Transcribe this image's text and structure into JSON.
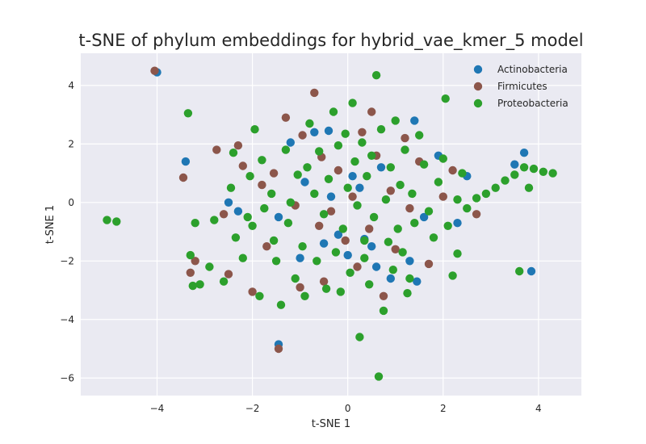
{
  "chart_data": {
    "type": "scatter",
    "title": "t-SNE of phylum embeddings for hybrid_vae_kmer_5 model",
    "xlabel": "t-SNE 1",
    "ylabel": "t-SNE 1",
    "xlim": [
      -5.6,
      4.9
    ],
    "ylim": [
      -6.6,
      5.1
    ],
    "xticks": [
      -4,
      -2,
      0,
      2,
      4
    ],
    "yticks": [
      -6,
      -4,
      -2,
      0,
      2,
      4
    ],
    "xtick_labels": [
      "−4",
      "−2",
      "0",
      "2",
      "4"
    ],
    "ytick_labels": [
      "−6",
      "−4",
      "−2",
      "0",
      "2",
      "4"
    ],
    "grid": true,
    "legend_position": "top-right",
    "series": [
      {
        "name": "Actinobacteria",
        "color": "#1f77b4",
        "points": [
          [
            -4.0,
            4.45
          ],
          [
            -3.4,
            1.4
          ],
          [
            -2.5,
            0.0
          ],
          [
            -2.3,
            -0.3
          ],
          [
            -1.45,
            -0.5
          ],
          [
            -1.45,
            -4.85
          ],
          [
            -1.2,
            2.05
          ],
          [
            -1.0,
            -1.9
          ],
          [
            -0.7,
            2.4
          ],
          [
            -0.4,
            2.45
          ],
          [
            -0.5,
            -1.4
          ],
          [
            -0.2,
            -1.1
          ],
          [
            0.0,
            -1.8
          ],
          [
            0.1,
            0.9
          ],
          [
            0.25,
            0.5
          ],
          [
            0.35,
            -1.25
          ],
          [
            0.5,
            -1.5
          ],
          [
            0.6,
            -2.2
          ],
          [
            0.9,
            -2.6
          ],
          [
            1.3,
            -2.0
          ],
          [
            1.4,
            2.8
          ],
          [
            1.45,
            -2.7
          ],
          [
            1.6,
            -0.5
          ],
          [
            1.9,
            1.6
          ],
          [
            2.3,
            -0.7
          ],
          [
            2.5,
            0.9
          ],
          [
            3.5,
            1.3
          ],
          [
            3.7,
            1.7
          ],
          [
            3.85,
            -2.35
          ],
          [
            -0.35,
            0.2
          ],
          [
            0.7,
            1.2
          ],
          [
            -0.9,
            0.7
          ]
        ]
      },
      {
        "name": "Firmicutes",
        "color": "#8c564b",
        "points": [
          [
            -4.05,
            4.5
          ],
          [
            -3.45,
            0.85
          ],
          [
            -3.2,
            -2.0
          ],
          [
            -2.75,
            1.8
          ],
          [
            -2.6,
            -0.4
          ],
          [
            -2.5,
            -2.45
          ],
          [
            -2.3,
            1.95
          ],
          [
            -2.2,
            1.25
          ],
          [
            -2.0,
            -3.05
          ],
          [
            -1.8,
            0.6
          ],
          [
            -1.7,
            -1.5
          ],
          [
            -1.45,
            -5.0
          ],
          [
            -1.3,
            2.9
          ],
          [
            -1.1,
            -0.1
          ],
          [
            -1.0,
            -2.9
          ],
          [
            -0.7,
            3.75
          ],
          [
            -0.6,
            -0.8
          ],
          [
            -0.55,
            1.55
          ],
          [
            -0.5,
            -2.7
          ],
          [
            -0.35,
            -0.3
          ],
          [
            -0.2,
            1.1
          ],
          [
            -0.05,
            -1.3
          ],
          [
            0.1,
            0.2
          ],
          [
            0.2,
            -2.2
          ],
          [
            0.3,
            2.4
          ],
          [
            0.45,
            -0.9
          ],
          [
            0.6,
            1.6
          ],
          [
            0.75,
            -3.2
          ],
          [
            0.9,
            0.4
          ],
          [
            1.0,
            -1.6
          ],
          [
            1.2,
            2.2
          ],
          [
            1.3,
            -0.2
          ],
          [
            1.5,
            1.4
          ],
          [
            1.7,
            -2.1
          ],
          [
            2.0,
            0.2
          ],
          [
            2.2,
            1.1
          ],
          [
            2.7,
            -0.4
          ],
          [
            -3.3,
            -2.4
          ],
          [
            -0.95,
            2.3
          ],
          [
            0.5,
            3.1
          ],
          [
            -1.55,
            1.0
          ]
        ]
      },
      {
        "name": "Proteobacteria",
        "color": "#2ca02c",
        "points": [
          [
            -5.05,
            -0.6
          ],
          [
            -4.85,
            -0.65
          ],
          [
            -3.35,
            3.05
          ],
          [
            -3.3,
            -1.8
          ],
          [
            -3.1,
            -2.8
          ],
          [
            -3.2,
            -0.7
          ],
          [
            -2.9,
            -2.2
          ],
          [
            -2.8,
            -0.6
          ],
          [
            -2.6,
            -2.7
          ],
          [
            -2.45,
            0.5
          ],
          [
            -2.35,
            -1.2
          ],
          [
            -2.2,
            -1.9
          ],
          [
            -2.1,
            -0.5
          ],
          [
            -2.05,
            0.9
          ],
          [
            -1.95,
            2.5
          ],
          [
            -1.8,
            1.45
          ],
          [
            -1.75,
            -0.2
          ],
          [
            -1.6,
            0.3
          ],
          [
            -1.55,
            -1.3
          ],
          [
            -1.5,
            -2.0
          ],
          [
            -1.4,
            -3.5
          ],
          [
            -1.3,
            1.8
          ],
          [
            -1.25,
            -0.7
          ],
          [
            -1.1,
            -2.6
          ],
          [
            -1.05,
            0.95
          ],
          [
            -0.95,
            -1.5
          ],
          [
            -0.9,
            -3.2
          ],
          [
            -0.85,
            1.2
          ],
          [
            -0.8,
            2.7
          ],
          [
            -0.7,
            0.3
          ],
          [
            -0.65,
            -2.0
          ],
          [
            -0.6,
            1.75
          ],
          [
            -0.5,
            -0.4
          ],
          [
            -0.45,
            -2.95
          ],
          [
            -0.4,
            0.8
          ],
          [
            -0.3,
            3.1
          ],
          [
            -0.25,
            -1.7
          ],
          [
            -0.2,
            1.95
          ],
          [
            -0.1,
            -0.9
          ],
          [
            -0.05,
            2.35
          ],
          [
            0.0,
            0.5
          ],
          [
            0.05,
            -2.4
          ],
          [
            0.1,
            3.4
          ],
          [
            0.15,
            1.4
          ],
          [
            0.2,
            -0.1
          ],
          [
            0.25,
            -4.6
          ],
          [
            0.3,
            2.05
          ],
          [
            0.35,
            -1.9
          ],
          [
            0.4,
            0.9
          ],
          [
            0.45,
            -2.8
          ],
          [
            0.5,
            1.6
          ],
          [
            0.55,
            -0.5
          ],
          [
            0.6,
            4.35
          ],
          [
            0.65,
            -5.95
          ],
          [
            0.7,
            2.5
          ],
          [
            0.75,
            -3.7
          ],
          [
            0.8,
            0.1
          ],
          [
            0.85,
            -1.35
          ],
          [
            0.9,
            1.2
          ],
          [
            0.95,
            -2.3
          ],
          [
            1.0,
            2.8
          ],
          [
            1.05,
            -0.9
          ],
          [
            1.1,
            0.6
          ],
          [
            1.15,
            -1.7
          ],
          [
            1.2,
            1.8
          ],
          [
            1.3,
            -2.6
          ],
          [
            1.35,
            0.3
          ],
          [
            1.4,
            -0.7
          ],
          [
            1.5,
            2.3
          ],
          [
            1.6,
            1.3
          ],
          [
            1.7,
            -0.3
          ],
          [
            1.8,
            -1.2
          ],
          [
            1.9,
            0.7
          ],
          [
            2.0,
            1.5
          ],
          [
            2.05,
            3.55
          ],
          [
            2.1,
            -0.8
          ],
          [
            2.2,
            -2.5
          ],
          [
            2.3,
            0.1
          ],
          [
            2.4,
            1.0
          ],
          [
            2.5,
            -0.2
          ],
          [
            2.7,
            0.15
          ],
          [
            2.9,
            0.3
          ],
          [
            3.1,
            0.5
          ],
          [
            3.3,
            0.75
          ],
          [
            3.5,
            0.95
          ],
          [
            3.7,
            1.2
          ],
          [
            3.9,
            1.15
          ],
          [
            4.1,
            1.05
          ],
          [
            4.3,
            1.0
          ],
          [
            3.6,
            -2.35
          ],
          [
            3.8,
            0.5
          ],
          [
            2.3,
            -1.75
          ],
          [
            -3.25,
            -2.85
          ],
          [
            -2.4,
            1.7
          ],
          [
            -1.85,
            -3.2
          ],
          [
            -0.15,
            -3.05
          ],
          [
            0.35,
            -1.3
          ],
          [
            1.25,
            -3.1
          ],
          [
            -1.2,
            0.0
          ],
          [
            -2.0,
            -0.8
          ]
        ]
      }
    ]
  }
}
